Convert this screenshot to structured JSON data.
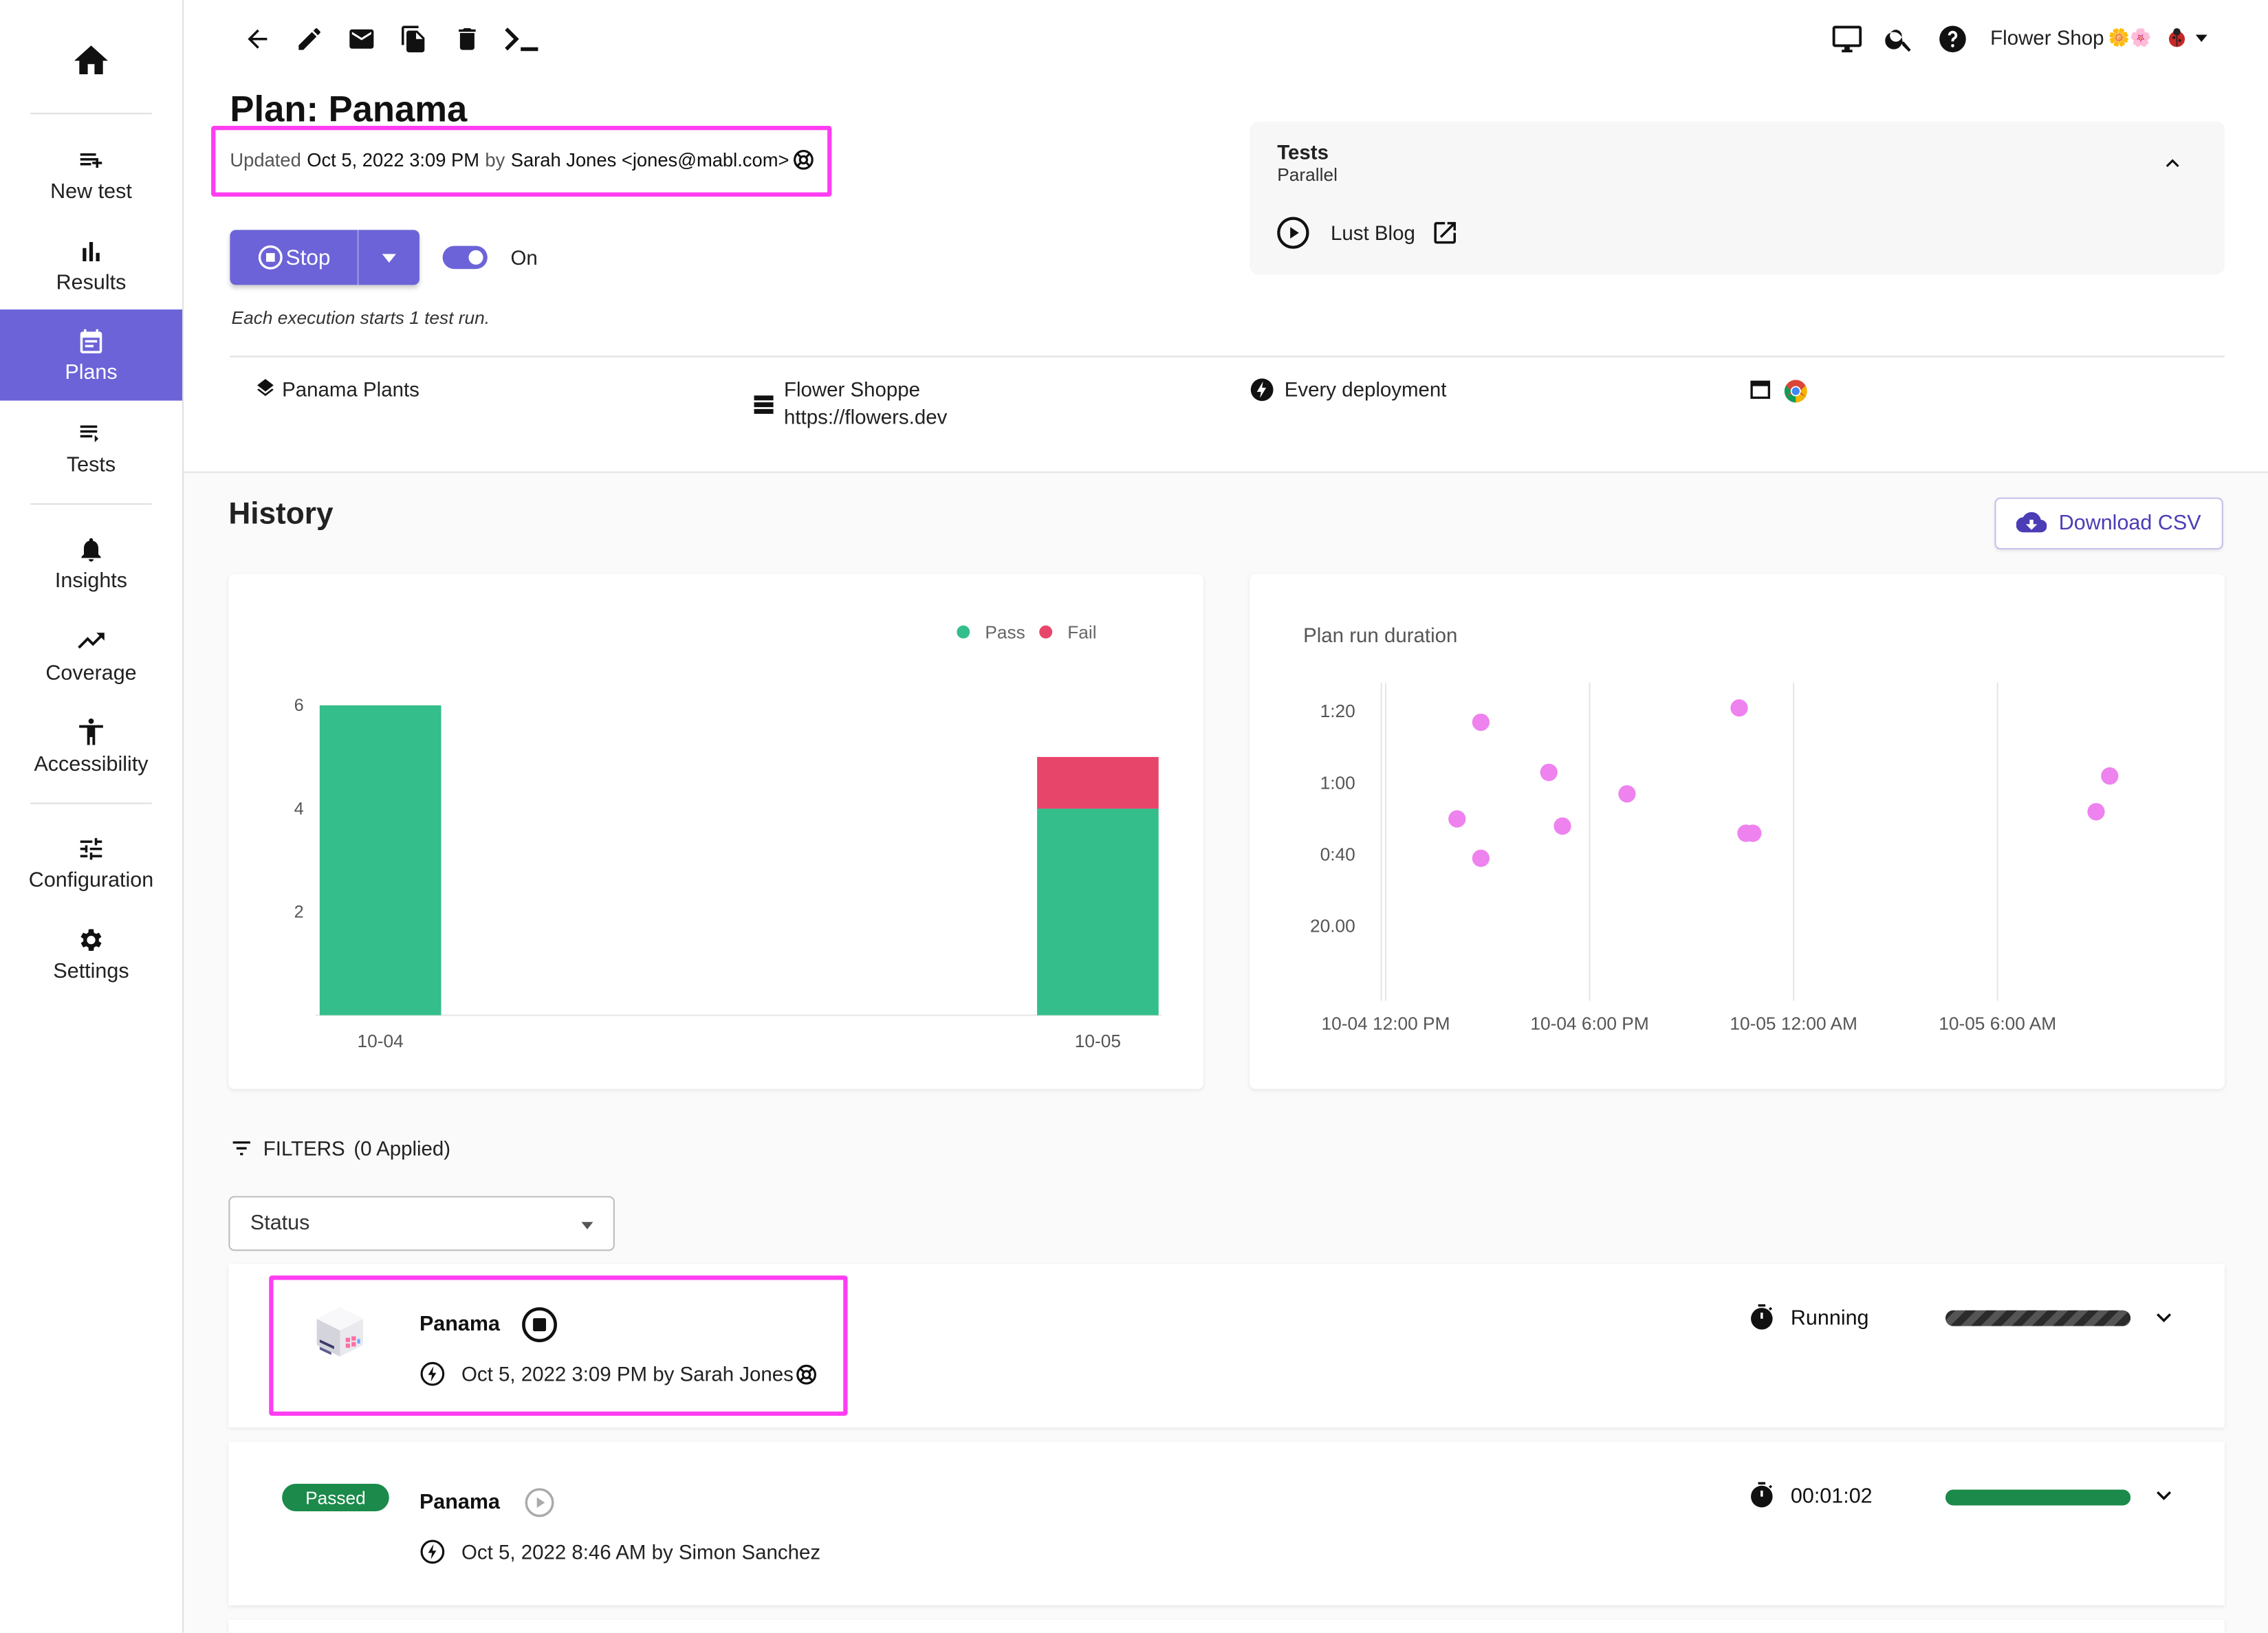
{
  "sidebar": {
    "items": [
      {
        "key": "home",
        "label": "",
        "icon": "home-icon"
      },
      {
        "key": "new-test",
        "label": "New test",
        "icon": "playlist-add-icon"
      },
      {
        "key": "results",
        "label": "Results",
        "icon": "bar-chart-icon"
      },
      {
        "key": "plans",
        "label": "Plans",
        "icon": "calendar-icon",
        "active": true
      },
      {
        "key": "tests",
        "label": "Tests",
        "icon": "list-icon"
      },
      {
        "key": "insights",
        "label": "Insights",
        "icon": "bell-icon"
      },
      {
        "key": "coverage",
        "label": "Coverage",
        "icon": "trending-up-icon"
      },
      {
        "key": "accessibility",
        "label": "Accessibility",
        "icon": "accessibility-icon"
      },
      {
        "key": "configuration",
        "label": "Configuration",
        "icon": "tune-icon"
      },
      {
        "key": "settings",
        "label": "Settings",
        "icon": "gear-icon"
      }
    ]
  },
  "topbar": {
    "workspace": "Flower Shop",
    "workspace_emoji": "🌼🌸",
    "toolbar_icons": [
      "back-arrow-icon",
      "edit-icon",
      "email-icon",
      "copy-icon",
      "delete-icon",
      "terminal-icon"
    ],
    "right_icons": [
      "monitor-icon",
      "search-icon",
      "help-icon",
      "ladybug-avatar"
    ]
  },
  "plan": {
    "title": "Plan: Panama",
    "updated_prefix": "Updated",
    "updated_date": "Oct 5, 2022 3:09 PM",
    "updated_by_word": "by",
    "updated_user": "Sarah Jones <jones@mabl.com>",
    "stop_label": "Stop",
    "toggle_label": "On",
    "execution_note": "Each execution starts 1 test run.",
    "application": "Panama Plants",
    "environment_name": "Flower Shoppe",
    "environment_url": "https://flowers.dev",
    "trigger": "Every deployment"
  },
  "tests_panel": {
    "title": "Tests",
    "subtitle": "Parallel",
    "test_name": "Lust Blog"
  },
  "history": {
    "title": "History",
    "download_label": "Download CSV"
  },
  "chart_data": [
    {
      "type": "bar",
      "stacked": true,
      "categories": [
        "10-04",
        "10-05"
      ],
      "series": [
        {
          "name": "Pass",
          "color": "#34be8b",
          "values": [
            6,
            4
          ]
        },
        {
          "name": "Fail",
          "color": "#e8456b",
          "values": [
            0,
            1
          ]
        }
      ],
      "yticks": [
        2,
        4,
        6
      ],
      "ylim": [
        0,
        6.3
      ],
      "legend": "top-right"
    },
    {
      "type": "scatter",
      "title": "Plan run duration",
      "color": "#ee82ee",
      "xlabels": [
        "10-04 12:00 PM",
        "10-04 6:00 PM",
        "10-05 12:00 AM",
        "10-05 6:00 AM"
      ],
      "xlim_hours": [
        0,
        24
      ],
      "yticks": [
        {
          "label": "1:20",
          "seconds": 80
        },
        {
          "label": "1:00",
          "seconds": 60
        },
        {
          "label": "0:40",
          "seconds": 40
        },
        {
          "label": "20.00",
          "seconds": 20
        }
      ],
      "points": [
        {
          "x": 2.1,
          "y": 50
        },
        {
          "x": 2.8,
          "y": 77
        },
        {
          "x": 2.8,
          "y": 39
        },
        {
          "x": 4.8,
          "y": 63
        },
        {
          "x": 5.2,
          "y": 48
        },
        {
          "x": 7.1,
          "y": 57
        },
        {
          "x": 10.4,
          "y": 81
        },
        {
          "x": 10.6,
          "y": 46
        },
        {
          "x": 10.8,
          "y": 46
        },
        {
          "x": 20.9,
          "y": 52
        },
        {
          "x": 21.3,
          "y": 62
        }
      ]
    }
  ],
  "filters": {
    "label": "FILTERS",
    "applied": "(0 Applied)",
    "status_placeholder": "Status"
  },
  "runs": [
    {
      "name": "Panama",
      "datetime_by": "Oct 5, 2022 3:09 PM by Sarah Jones",
      "status": "Running",
      "progress": 1.0,
      "bar_style": "striped"
    },
    {
      "name": "Panama",
      "badge": "Passed",
      "datetime_by": "Oct 5, 2022 8:46 AM by Simon Sanchez",
      "status": "00:01:02",
      "progress": 1.0,
      "bar_style": "solid"
    }
  ],
  "colors": {
    "accent": "#6c63d8",
    "highlight": "#ff3df2",
    "pass": "#34be8b",
    "fail": "#e8456b",
    "passed_badge": "#1b8a4a",
    "scatter": "#ee82ee"
  }
}
